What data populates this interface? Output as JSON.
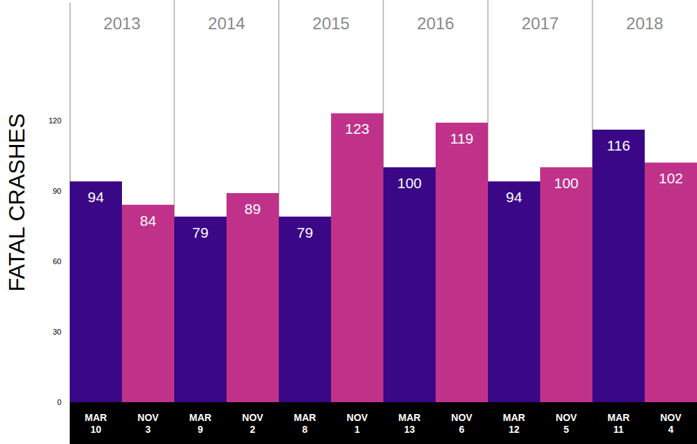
{
  "chart_data": {
    "type": "bar",
    "y_label": "FATAL CRASHES",
    "categories": [
      "MAR\n10",
      "NOV\n3",
      "MAR\n9",
      "NOV\n2",
      "MAR\n8",
      "NOV\n1",
      "MAR\n13",
      "NOV\n6",
      "MAR\n12",
      "NOV\n5",
      "MAR\n11",
      "NOV\n4"
    ],
    "values": [
      94,
      84,
      79,
      89,
      79,
      123,
      100,
      119,
      94,
      100,
      116,
      102
    ],
    "colors": [
      "#3a0787",
      "#c0328a",
      "#3a0787",
      "#c0328a",
      "#3a0787",
      "#c0328a",
      "#3a0787",
      "#c0328a",
      "#3a0787",
      "#c0328a",
      "#3a0787",
      "#c0328a"
    ],
    "ylim": [
      0,
      170
    ],
    "yticks": [
      0,
      30,
      60,
      90,
      120
    ],
    "grid": false,
    "data_labels": true,
    "annotations": [
      {
        "text": "2013",
        "categories": [
          "MAR\n10",
          "NOV\n3"
        ]
      },
      {
        "text": "2014",
        "categories": [
          "MAR\n9",
          "NOV\n2"
        ]
      },
      {
        "text": "2015",
        "categories": [
          "MAR\n8",
          "NOV\n1"
        ]
      },
      {
        "text": "2016",
        "categories": [
          "MAR\n13",
          "NOV\n6"
        ]
      },
      {
        "text": "2017",
        "categories": [
          "MAR\n12",
          "NOV\n5"
        ]
      },
      {
        "text": "2018",
        "categories": [
          "MAR\n11",
          "NOV\n4"
        ]
      }
    ]
  }
}
